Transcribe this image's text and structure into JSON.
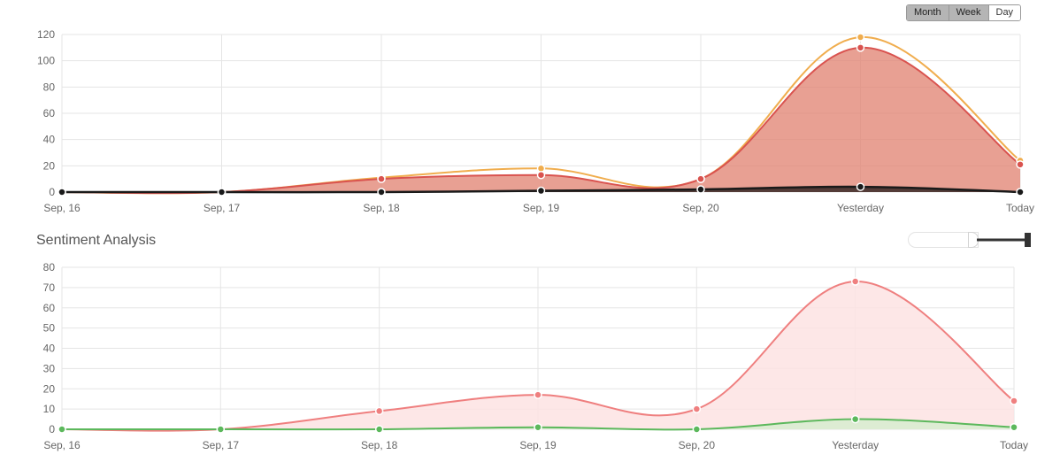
{
  "range_toggle": {
    "options": [
      "Month",
      "Week",
      "Day"
    ],
    "selected": "Week"
  },
  "section_title": "Sentiment Analysis",
  "colors": {
    "orange": "#f0ad4e",
    "red": "#d9534f",
    "black": "#1a1a1a",
    "pink": "#ef7f7f",
    "green": "#5cb85c",
    "grid": "#e5e5e5"
  },
  "chart_data": [
    {
      "type": "area",
      "x": [
        "Sep, 16",
        "Sep, 17",
        "Sep, 18",
        "Sep, 19",
        "Sep, 20",
        "Yesterday",
        "Today"
      ],
      "ylim": [
        0,
        120
      ],
      "yticks": [
        0,
        20,
        40,
        60,
        80,
        100,
        120
      ],
      "grid": true,
      "series": [
        {
          "values": [
            0,
            0,
            11,
            18,
            10,
            118,
            24
          ],
          "color": "#f0ad4e"
        },
        {
          "values": [
            0,
            0,
            10,
            13,
            10,
            110,
            21
          ],
          "color": "#d9534f"
        },
        {
          "values": [
            0,
            0,
            0,
            1,
            2,
            4,
            0
          ],
          "color": "#1a1a1a"
        }
      ]
    },
    {
      "type": "area",
      "x": [
        "Sep, 16",
        "Sep, 17",
        "Sep, 18",
        "Sep, 19",
        "Sep, 20",
        "Yesterday",
        "Today"
      ],
      "ylim": [
        0,
        80
      ],
      "yticks": [
        0,
        10,
        20,
        30,
        40,
        50,
        60,
        70,
        80
      ],
      "grid": true,
      "series": [
        {
          "values": [
            0,
            0,
            9,
            17,
            10,
            73,
            14
          ],
          "color": "#ef7f7f"
        },
        {
          "values": [
            0,
            0,
            0,
            1,
            0,
            5,
            1
          ],
          "color": "#5cb85c"
        }
      ]
    }
  ]
}
